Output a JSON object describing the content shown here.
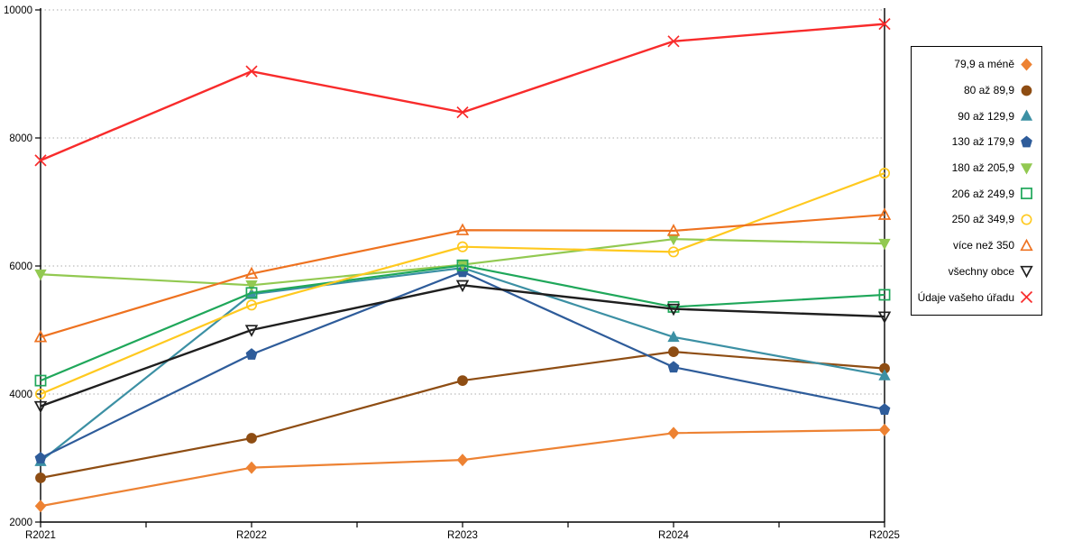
{
  "chart_data": {
    "type": "line",
    "x": [
      "R2021",
      "R2022",
      "R2023",
      "R2024",
      "R2025"
    ],
    "xlabel": "",
    "ylabel": "",
    "title": "",
    "ylim": [
      2000,
      10000
    ],
    "yticks": [
      2000,
      4000,
      6000,
      8000,
      10000
    ],
    "y_tick_labels": [
      "2000",
      "4000",
      "6000",
      "8000",
      "10000"
    ],
    "grid": "horizontal-dotted",
    "legend_position": "right-outside",
    "series": [
      {
        "name": "79,9 a méně",
        "color": "#ED8233",
        "marker": "diamond",
        "filled": true,
        "values": [
          2250,
          2850,
          2970,
          3390,
          3440
        ]
      },
      {
        "name": "80 až 89,9",
        "color": "#8E4D13",
        "marker": "circle",
        "filled": true,
        "values": [
          2690,
          3310,
          4210,
          4660,
          4400
        ]
      },
      {
        "name": "90 až 129,9",
        "color": "#3C90A4",
        "marker": "triangle-up",
        "filled": true,
        "values": [
          2950,
          5560,
          5970,
          4890,
          4290
        ]
      },
      {
        "name": "130 až 179,9",
        "color": "#2E5C9A",
        "marker": "pentagon",
        "filled": true,
        "values": [
          3000,
          4620,
          5910,
          4420,
          3760
        ]
      },
      {
        "name": "180 až 205,9",
        "color": "#92C951",
        "marker": "triangle-down",
        "filled": true,
        "values": [
          5870,
          5700,
          6020,
          6420,
          6350
        ]
      },
      {
        "name": "206 až 249,9",
        "color": "#1FA75A",
        "marker": "square",
        "filled": false,
        "values": [
          4210,
          5580,
          6010,
          5360,
          5550
        ]
      },
      {
        "name": "250 až 349,9",
        "color": "#FFC91F",
        "marker": "circle",
        "filled": false,
        "values": [
          4000,
          5390,
          6300,
          6220,
          7450
        ]
      },
      {
        "name": "více než 350",
        "color": "#EE7220",
        "marker": "triangle-up",
        "filled": false,
        "values": [
          4890,
          5880,
          6560,
          6550,
          6800
        ]
      },
      {
        "name": "všechny obce",
        "color": "#1F1F1F",
        "marker": "triangle-down",
        "filled": false,
        "values": [
          3810,
          5000,
          5700,
          5330,
          5210
        ]
      },
      {
        "name": "Údaje vašeho úřadu",
        "color": "#F82B2B",
        "marker": "x",
        "filled": false,
        "values": [
          7650,
          9040,
          8400,
          9510,
          9780
        ]
      }
    ],
    "colors": {
      "axis": "#000000",
      "gridline": "#ABABAB",
      "background": "#FFFFFF"
    }
  }
}
